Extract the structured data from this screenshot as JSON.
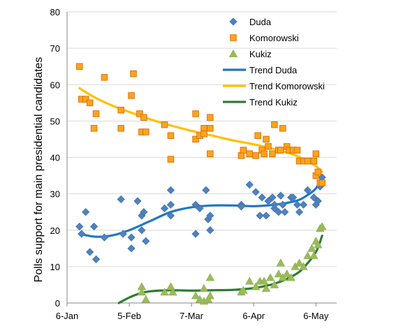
{
  "chart_data": {
    "type": "scatter",
    "title": "",
    "xlabel": "",
    "ylabel": "Polls  support for main presidential candidates",
    "ylim": [
      0,
      80
    ],
    "yticks": [
      0,
      10,
      20,
      30,
      40,
      50,
      60,
      70,
      80
    ],
    "xlim": [
      "2015-01-06",
      "2015-05-16"
    ],
    "xticks": [
      {
        "date": "2015-01-06",
        "label": "6-Jan"
      },
      {
        "date": "2015-02-05",
        "label": "5-Feb"
      },
      {
        "date": "2015-03-07",
        "label": "7-Mar"
      },
      {
        "date": "2015-04-06",
        "label": "6-Apr"
      },
      {
        "date": "2015-05-06",
        "label": "6-May"
      }
    ],
    "grid": "horizontal",
    "legend_position": "top-right",
    "series": [
      {
        "name": "Duda",
        "kind": "scatter",
        "marker": "diamond",
        "color": "#4f81bd",
        "points": [
          [
            "2015-01-12",
            21
          ],
          [
            "2015-01-13",
            19
          ],
          [
            "2015-01-15",
            25
          ],
          [
            "2015-01-17",
            14
          ],
          [
            "2015-01-19",
            21
          ],
          [
            "2015-01-20",
            12
          ],
          [
            "2015-01-24",
            18
          ],
          [
            "2015-02-01",
            28.5
          ],
          [
            "2015-02-02",
            19
          ],
          [
            "2015-02-06",
            15
          ],
          [
            "2015-02-06",
            18
          ],
          [
            "2015-02-09",
            28
          ],
          [
            "2015-02-11",
            20
          ],
          [
            "2015-02-11",
            24
          ],
          [
            "2015-02-12",
            25
          ],
          [
            "2015-02-13",
            17
          ],
          [
            "2015-02-22",
            26
          ],
          [
            "2015-02-25",
            31
          ],
          [
            "2015-02-25",
            27
          ],
          [
            "2015-02-25",
            24
          ],
          [
            "2015-03-09",
            19
          ],
          [
            "2015-03-09",
            27
          ],
          [
            "2015-03-11",
            26
          ],
          [
            "2015-03-14",
            31
          ],
          [
            "2015-03-15",
            23
          ],
          [
            "2015-03-16",
            24
          ],
          [
            "2015-03-16",
            20
          ],
          [
            "2015-03-31",
            27
          ],
          [
            "2015-03-31",
            26.5
          ],
          [
            "2015-04-04",
            32.5
          ],
          [
            "2015-04-07",
            30.5
          ],
          [
            "2015-04-09",
            24
          ],
          [
            "2015-04-10",
            29
          ],
          [
            "2015-04-12",
            24
          ],
          [
            "2015-04-13",
            28
          ],
          [
            "2015-04-15",
            29
          ],
          [
            "2015-04-16",
            27
          ],
          [
            "2015-04-16",
            26
          ],
          [
            "2015-04-18",
            25
          ],
          [
            "2015-04-19",
            29.5
          ],
          [
            "2015-04-20",
            27
          ],
          [
            "2015-04-21",
            25
          ],
          [
            "2015-04-24",
            29
          ],
          [
            "2015-04-25",
            29
          ],
          [
            "2015-04-27",
            27
          ],
          [
            "2015-04-28",
            25
          ],
          [
            "2015-04-30",
            27
          ],
          [
            "2015-05-02",
            31
          ],
          [
            "2015-05-05",
            29
          ],
          [
            "2015-05-06",
            27
          ],
          [
            "2015-05-07",
            28
          ],
          [
            "2015-05-08",
            32
          ],
          [
            "2015-05-09",
            34.5
          ]
        ]
      },
      {
        "name": "Komorowski",
        "kind": "scatter",
        "marker": "square",
        "color": "#f7a520",
        "points": [
          [
            "2015-01-12",
            65
          ],
          [
            "2015-01-13",
            56
          ],
          [
            "2015-01-15",
            56
          ],
          [
            "2015-01-17",
            55
          ],
          [
            "2015-01-19",
            48
          ],
          [
            "2015-01-20",
            52
          ],
          [
            "2015-01-24",
            62
          ],
          [
            "2015-02-01",
            53
          ],
          [
            "2015-02-01",
            48
          ],
          [
            "2015-02-06",
            57
          ],
          [
            "2015-02-07",
            63
          ],
          [
            "2015-02-10",
            52
          ],
          [
            "2015-02-11",
            47
          ],
          [
            "2015-02-12",
            51
          ],
          [
            "2015-02-13",
            47
          ],
          [
            "2015-02-22",
            49
          ],
          [
            "2015-02-25",
            46
          ],
          [
            "2015-02-25",
            39.5
          ],
          [
            "2015-03-09",
            52
          ],
          [
            "2015-03-09",
            45
          ],
          [
            "2015-03-11",
            46
          ],
          [
            "2015-03-13",
            48
          ],
          [
            "2015-03-13",
            46.5
          ],
          [
            "2015-03-16",
            51
          ],
          [
            "2015-03-16",
            48
          ],
          [
            "2015-03-16",
            41
          ],
          [
            "2015-03-31",
            40.5
          ],
          [
            "2015-04-01",
            42
          ],
          [
            "2015-04-04",
            41
          ],
          [
            "2015-04-07",
            40.5
          ],
          [
            "2015-04-08",
            46
          ],
          [
            "2015-04-10",
            42
          ],
          [
            "2015-04-11",
            41
          ],
          [
            "2015-04-12",
            45
          ],
          [
            "2015-04-13",
            43
          ],
          [
            "2015-04-15",
            41
          ],
          [
            "2015-04-16",
            49
          ],
          [
            "2015-04-18",
            42
          ],
          [
            "2015-04-19",
            42
          ],
          [
            "2015-04-20",
            48
          ],
          [
            "2015-04-22",
            43
          ],
          [
            "2015-04-23",
            42
          ],
          [
            "2015-04-25",
            42
          ],
          [
            "2015-04-27",
            42
          ],
          [
            "2015-04-28",
            39
          ],
          [
            "2015-04-30",
            39
          ],
          [
            "2015-05-02",
            39
          ],
          [
            "2015-05-05",
            39
          ],
          [
            "2015-05-06",
            41
          ],
          [
            "2015-05-06",
            35
          ],
          [
            "2015-05-07",
            36
          ],
          [
            "2015-05-08",
            33
          ],
          [
            "2015-05-09",
            33
          ]
        ]
      },
      {
        "name": "Kukiz",
        "kind": "scatter",
        "marker": "triangle",
        "color": "#9bbb59",
        "points": [
          [
            "2015-02-11",
            4.5
          ],
          [
            "2015-02-11",
            3
          ],
          [
            "2015-02-13",
            1
          ],
          [
            "2015-02-22",
            3
          ],
          [
            "2015-02-25",
            4.5
          ],
          [
            "2015-02-26",
            3
          ],
          [
            "2015-03-09",
            2
          ],
          [
            "2015-03-11",
            1
          ],
          [
            "2015-03-13",
            4
          ],
          [
            "2015-03-13",
            0.5
          ],
          [
            "2015-03-15",
            1
          ],
          [
            "2015-03-16",
            7
          ],
          [
            "2015-03-16",
            2
          ],
          [
            "2015-03-31",
            3
          ],
          [
            "2015-04-01",
            3.5
          ],
          [
            "2015-04-04",
            6
          ],
          [
            "2015-04-07",
            4.5
          ],
          [
            "2015-04-09",
            6
          ],
          [
            "2015-04-11",
            6
          ],
          [
            "2015-04-12",
            4
          ],
          [
            "2015-04-14",
            7
          ],
          [
            "2015-04-16",
            5
          ],
          [
            "2015-04-18",
            8
          ],
          [
            "2015-04-19",
            11
          ],
          [
            "2015-04-20",
            7
          ],
          [
            "2015-04-22",
            8
          ],
          [
            "2015-04-24",
            7
          ],
          [
            "2015-04-26",
            10
          ],
          [
            "2015-04-28",
            11
          ],
          [
            "2015-04-30",
            10
          ],
          [
            "2015-05-02",
            13
          ],
          [
            "2015-05-04",
            15
          ],
          [
            "2015-05-05",
            13
          ],
          [
            "2015-05-06",
            17
          ],
          [
            "2015-05-07",
            16
          ],
          [
            "2015-05-08",
            20.5
          ],
          [
            "2015-05-09",
            21
          ]
        ]
      },
      {
        "name": "Trend Duda",
        "kind": "line",
        "color": "#1f77c8",
        "points": [
          [
            "2015-01-12",
            19
          ],
          [
            "2015-01-20",
            18.2
          ],
          [
            "2015-01-28",
            18.6
          ],
          [
            "2015-02-05",
            20
          ],
          [
            "2015-02-15",
            22.5
          ],
          [
            "2015-02-25",
            25
          ],
          [
            "2015-03-07",
            26.3
          ],
          [
            "2015-03-17",
            26.8
          ],
          [
            "2015-03-27",
            26.8
          ],
          [
            "2015-04-06",
            26.6
          ],
          [
            "2015-04-16",
            27
          ],
          [
            "2015-04-26",
            28
          ],
          [
            "2015-05-01",
            29.3
          ],
          [
            "2015-05-06",
            31.5
          ],
          [
            "2015-05-09",
            35
          ]
        ]
      },
      {
        "name": "Trend Komorowski",
        "kind": "line",
        "color": "#ffc000",
        "points": [
          [
            "2015-01-12",
            59
          ],
          [
            "2015-01-20",
            56.3
          ],
          [
            "2015-01-28",
            54.2
          ],
          [
            "2015-02-05",
            52.5
          ],
          [
            "2015-02-15",
            50.5
          ],
          [
            "2015-02-25",
            48.8
          ],
          [
            "2015-03-07",
            47.3
          ],
          [
            "2015-03-17",
            46
          ],
          [
            "2015-03-27",
            44.7
          ],
          [
            "2015-04-06",
            43.6
          ],
          [
            "2015-04-16",
            42.3
          ],
          [
            "2015-04-26",
            40.6
          ],
          [
            "2015-05-01",
            39.3
          ],
          [
            "2015-05-06",
            37.6
          ],
          [
            "2015-05-09",
            36
          ]
        ]
      },
      {
        "name": "Trend Kukiz",
        "kind": "line",
        "color": "#2e7d32",
        "points": [
          [
            "2015-01-31",
            0
          ],
          [
            "2015-02-05",
            1.5
          ],
          [
            "2015-02-10",
            2.6
          ],
          [
            "2015-02-15",
            3.2
          ],
          [
            "2015-02-25",
            3.5
          ],
          [
            "2015-03-07",
            3.4
          ],
          [
            "2015-03-17",
            3.5
          ],
          [
            "2015-03-27",
            3.6
          ],
          [
            "2015-04-06",
            4.1
          ],
          [
            "2015-04-16",
            5.3
          ],
          [
            "2015-04-26",
            7.8
          ],
          [
            "2015-05-01",
            10.3
          ],
          [
            "2015-05-06",
            14
          ],
          [
            "2015-05-09",
            18.5
          ]
        ]
      }
    ]
  }
}
